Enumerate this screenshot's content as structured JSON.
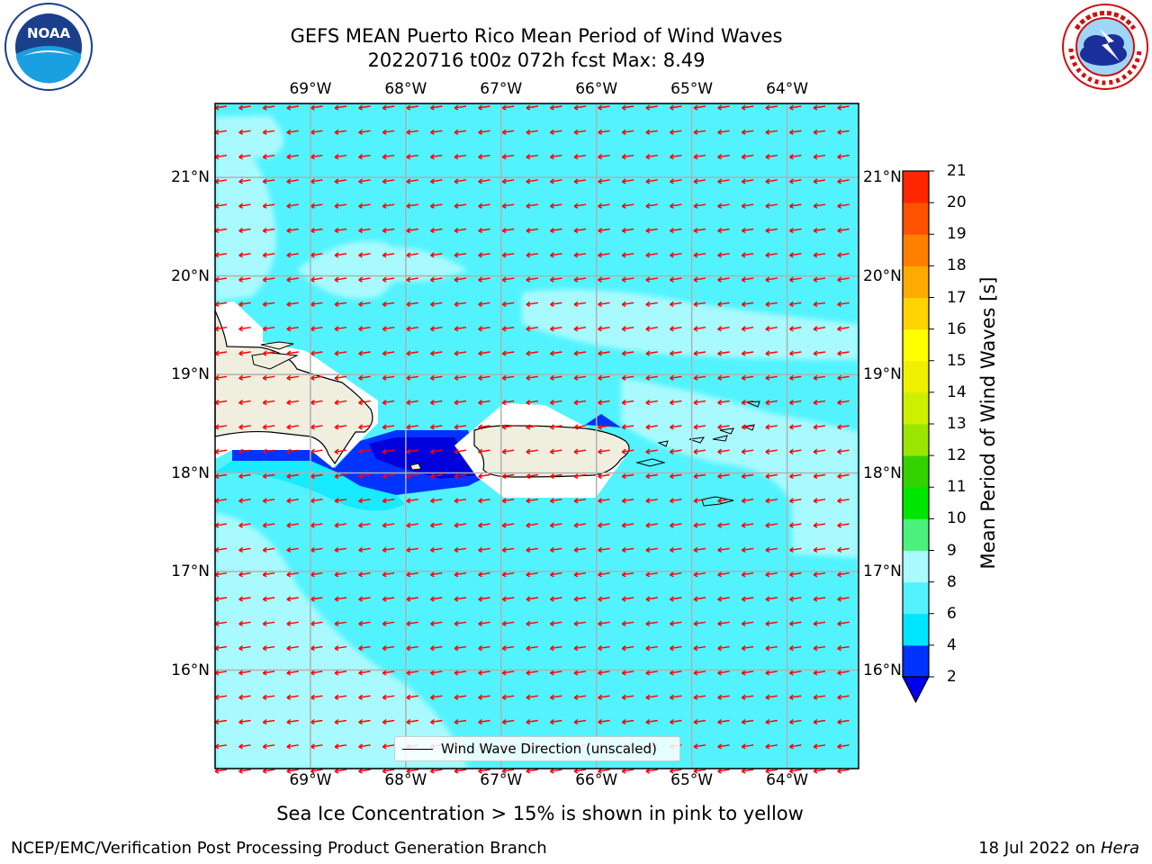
{
  "title": {
    "line1": "GEFS MEAN Puerto Rico Mean Period of Wind Waves",
    "line2": "20220716 t00z 072h fcst   Max: 8.49"
  },
  "map": {
    "lon_range": [
      -70.0,
      -63.25
    ],
    "lat_range": [
      15.0,
      21.75
    ],
    "lon_ticks": [
      "69°W",
      "68°W",
      "67°W",
      "66°W",
      "65°W",
      "64°W"
    ],
    "lat_ticks": [
      "21°N",
      "20°N",
      "19°N",
      "18°N",
      "17°N",
      "16°N"
    ],
    "gridlines": true,
    "arrow_direction": "westward",
    "arrow_color": "#ff0000",
    "land_color": "#efeedf"
  },
  "legend": {
    "label": "Wind Wave Direction (unscaled)"
  },
  "colorbar": {
    "label": "Mean Period of Wind Waves [s]",
    "ticks": [
      "2",
      "4",
      "6",
      "8",
      "9",
      "10",
      "11",
      "12",
      "13",
      "14",
      "15",
      "16",
      "17",
      "18",
      "19",
      "20",
      "21"
    ],
    "colors": [
      "#0033ff",
      "#00e5ff",
      "#52f3ff",
      "#a8faff",
      "#4cf07c",
      "#00e600",
      "#33d200",
      "#9ae600",
      "#ccf000",
      "#eef000",
      "#ffff00",
      "#ffd400",
      "#ffaa00",
      "#ff8000",
      "#ff5200",
      "#ff2600"
    ],
    "under_color": "#0000ee"
  },
  "subtitle": "Sea Ice Concentration > 15% is shown in pink to yellow",
  "footer": {
    "left": "NCEP/EMC/Verification Post Processing Product Generation Branch",
    "date": "18 Jul 2022 on ",
    "host": "Hera"
  },
  "logos": {
    "left": "noaa-logo",
    "right": "nws-logo"
  }
}
